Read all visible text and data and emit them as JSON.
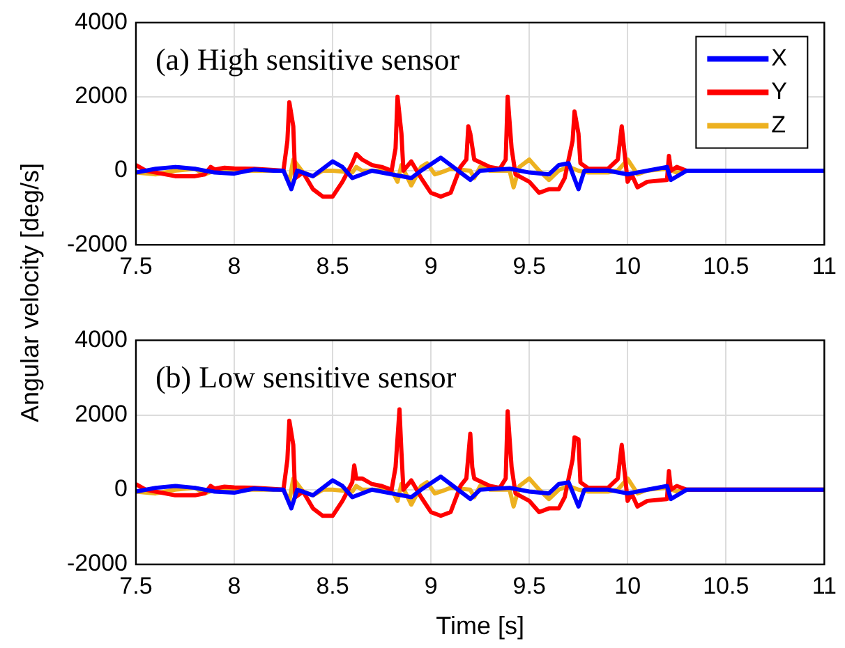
{
  "chart_data": [
    {
      "type": "line",
      "annotations": [
        "(a) High sensitive sensor"
      ],
      "ylabel": "Angular velocity [deg/s]",
      "xlim": [
        7.5,
        11
      ],
      "xticks": [
        7.5,
        8,
        8.5,
        9,
        9.5,
        10,
        10.5,
        11
      ],
      "ylim": [
        -2000,
        4000
      ],
      "yticks": [
        -2000,
        0,
        2000,
        4000
      ],
      "grid": true,
      "legend": "top right",
      "series": [
        {
          "name": "X",
          "color": "#0000ff",
          "x": [
            7.5,
            7.6,
            7.7,
            7.8,
            7.9,
            8.0,
            8.1,
            8.2,
            8.25,
            8.29,
            8.32,
            8.4,
            8.5,
            8.55,
            8.6,
            8.7,
            8.8,
            8.9,
            8.95,
            9.05,
            9.1,
            9.2,
            9.25,
            9.4,
            9.5,
            9.6,
            9.65,
            9.7,
            9.75,
            9.78,
            9.9,
            10.0,
            10.1,
            10.2,
            10.22,
            10.3,
            11
          ],
          "values": [
            -50,
            50,
            100,
            50,
            -50,
            -80,
            30,
            0,
            0,
            -500,
            0,
            -150,
            250,
            100,
            -200,
            0,
            -100,
            -200,
            0,
            350,
            150,
            -250,
            0,
            50,
            -50,
            -100,
            150,
            200,
            -500,
            0,
            0,
            -100,
            0,
            100,
            -250,
            0,
            0
          ]
        },
        {
          "name": "Y",
          "color": "#ff0000",
          "x": [
            7.5,
            7.55,
            7.6,
            7.7,
            7.8,
            7.85,
            7.88,
            7.9,
            7.95,
            8.0,
            8.1,
            8.2,
            8.25,
            8.27,
            8.28,
            8.3,
            8.31,
            8.35,
            8.4,
            8.45,
            8.5,
            8.55,
            8.6,
            8.62,
            8.65,
            8.7,
            8.75,
            8.8,
            8.82,
            8.83,
            8.85,
            8.86,
            8.9,
            8.95,
            9.0,
            9.05,
            9.1,
            9.15,
            9.18,
            9.19,
            9.2,
            9.22,
            9.3,
            9.35,
            9.38,
            9.39,
            9.41,
            9.43,
            9.5,
            9.55,
            9.6,
            9.65,
            9.68,
            9.7,
            9.72,
            9.73,
            9.75,
            9.76,
            9.8,
            9.9,
            9.95,
            9.97,
            9.99,
            10.0,
            10.02,
            10.05,
            10.1,
            10.2,
            10.21,
            10.22,
            10.25,
            10.3,
            11
          ],
          "values": [
            150,
            0,
            -50,
            -150,
            -150,
            -100,
            100,
            30,
            80,
            60,
            50,
            20,
            0,
            800,
            1850,
            1200,
            -200,
            -50,
            -500,
            -700,
            -700,
            -300,
            200,
            450,
            300,
            150,
            100,
            0,
            600,
            2000,
            1000,
            0,
            250,
            -200,
            -600,
            -700,
            -600,
            100,
            300,
            1200,
            1000,
            300,
            100,
            50,
            300,
            2000,
            600,
            -100,
            -300,
            -600,
            -500,
            -500,
            -200,
            300,
            800,
            1600,
            1000,
            200,
            50,
            50,
            300,
            1200,
            200,
            -300,
            -100,
            -450,
            -300,
            -250,
            400,
            0,
            100,
            0,
            0
          ]
        },
        {
          "name": "Z",
          "color": "#edb120",
          "x": [
            7.5,
            7.6,
            7.7,
            7.8,
            7.85,
            7.9,
            8.0,
            8.1,
            8.25,
            8.28,
            8.3,
            8.35,
            8.4,
            8.45,
            8.5,
            8.6,
            8.62,
            8.65,
            8.8,
            8.83,
            8.85,
            8.9,
            8.95,
            8.98,
            9.02,
            9.05,
            9.1,
            9.2,
            9.22,
            9.25,
            9.3,
            9.4,
            9.42,
            9.45,
            9.5,
            9.55,
            9.6,
            9.65,
            9.7,
            9.75,
            9.8,
            9.9,
            9.95,
            10.0,
            10.05,
            10.1,
            10.2,
            10.25,
            10.3,
            11
          ],
          "values": [
            -50,
            -100,
            0,
            50,
            -100,
            0,
            0,
            0,
            0,
            -300,
            300,
            -50,
            -150,
            0,
            0,
            -50,
            100,
            0,
            0,
            -300,
            150,
            -400,
            100,
            200,
            -100,
            -50,
            50,
            0,
            -200,
            100,
            0,
            0,
            -450,
            100,
            300,
            0,
            -250,
            0,
            100,
            0,
            -50,
            -50,
            0,
            300,
            -100,
            0,
            50,
            -50,
            0,
            0
          ]
        }
      ]
    },
    {
      "type": "line",
      "annotations": [
        "(b) Low sensitive sensor"
      ],
      "xlabel": "Time [s]",
      "xlim": [
        7.5,
        11
      ],
      "xticks": [
        7.5,
        8,
        8.5,
        9,
        9.5,
        10,
        10.5,
        11
      ],
      "ylim": [
        -2000,
        4000
      ],
      "yticks": [
        -2000,
        0,
        2000,
        4000
      ],
      "grid": true,
      "series": [
        {
          "color": "#0000ff",
          "x": [
            7.5,
            7.6,
            7.7,
            7.8,
            7.9,
            8.0,
            8.1,
            8.2,
            8.25,
            8.29,
            8.32,
            8.4,
            8.5,
            8.55,
            8.6,
            8.7,
            8.8,
            8.9,
            8.95,
            9.05,
            9.1,
            9.2,
            9.25,
            9.4,
            9.5,
            9.6,
            9.65,
            9.7,
            9.75,
            9.78,
            9.9,
            10.0,
            10.1,
            10.2,
            10.22,
            10.3,
            11
          ],
          "values": [
            -50,
            50,
            100,
            50,
            -50,
            -80,
            30,
            0,
            0,
            -500,
            0,
            -150,
            250,
            100,
            -200,
            0,
            -100,
            -200,
            0,
            350,
            150,
            -250,
            0,
            50,
            -50,
            -100,
            150,
            200,
            -450,
            0,
            0,
            -100,
            0,
            100,
            -250,
            0,
            0
          ]
        },
        {
          "color": "#ff0000",
          "x": [
            7.5,
            7.55,
            7.6,
            7.7,
            7.8,
            7.85,
            7.88,
            7.9,
            7.95,
            8.0,
            8.1,
            8.2,
            8.25,
            8.27,
            8.28,
            8.3,
            8.31,
            8.35,
            8.4,
            8.45,
            8.5,
            8.55,
            8.6,
            8.61,
            8.62,
            8.65,
            8.7,
            8.75,
            8.8,
            8.82,
            8.84,
            8.85,
            8.86,
            8.9,
            8.95,
            9.0,
            9.05,
            9.1,
            9.15,
            9.18,
            9.2,
            9.21,
            9.22,
            9.3,
            9.35,
            9.38,
            9.39,
            9.41,
            9.43,
            9.5,
            9.55,
            9.6,
            9.65,
            9.68,
            9.7,
            9.72,
            9.73,
            9.75,
            9.76,
            9.8,
            9.9,
            9.95,
            9.97,
            9.99,
            10.0,
            10.02,
            10.05,
            10.1,
            10.2,
            10.21,
            10.22,
            10.25,
            10.3,
            11
          ],
          "values": [
            150,
            0,
            -50,
            -150,
            -150,
            -100,
            100,
            30,
            80,
            60,
            50,
            20,
            0,
            800,
            1850,
            1200,
            -200,
            -50,
            -500,
            -700,
            -700,
            -300,
            200,
            650,
            300,
            300,
            150,
            100,
            0,
            600,
            2150,
            1000,
            0,
            250,
            -200,
            -600,
            -700,
            -600,
            100,
            300,
            1500,
            600,
            300,
            100,
            50,
            300,
            2100,
            600,
            -100,
            -300,
            -600,
            -500,
            -500,
            -200,
            300,
            800,
            1400,
            1350,
            200,
            50,
            50,
            300,
            1200,
            200,
            -300,
            -100,
            -450,
            -300,
            -250,
            500,
            0,
            100,
            0,
            0
          ]
        },
        {
          "color": "#edb120",
          "x": [
            7.5,
            7.6,
            7.7,
            7.8,
            7.85,
            7.9,
            8.0,
            8.1,
            8.25,
            8.28,
            8.3,
            8.35,
            8.4,
            8.45,
            8.5,
            8.6,
            8.62,
            8.65,
            8.8,
            8.83,
            8.85,
            8.9,
            8.95,
            8.98,
            9.02,
            9.05,
            9.1,
            9.2,
            9.22,
            9.25,
            9.3,
            9.4,
            9.42,
            9.45,
            9.5,
            9.55,
            9.6,
            9.65,
            9.7,
            9.75,
            9.8,
            9.9,
            9.95,
            10.0,
            10.05,
            10.1,
            10.2,
            10.25,
            10.3,
            11
          ],
          "values": [
            -50,
            -100,
            0,
            50,
            -100,
            0,
            0,
            0,
            0,
            -300,
            300,
            -50,
            -150,
            0,
            0,
            -50,
            100,
            0,
            0,
            -300,
            150,
            -400,
            100,
            200,
            -100,
            -50,
            50,
            0,
            -200,
            100,
            0,
            0,
            -450,
            100,
            300,
            0,
            -250,
            0,
            100,
            0,
            -50,
            -50,
            0,
            300,
            -100,
            0,
            50,
            -50,
            0,
            0
          ]
        }
      ]
    }
  ]
}
